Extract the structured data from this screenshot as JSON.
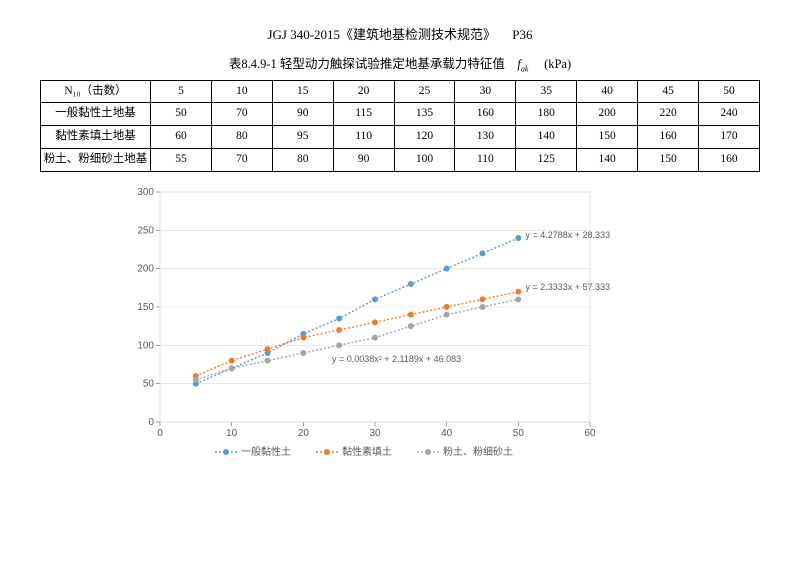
{
  "header": {
    "standard": "JGJ 340-2015《建筑地基检测技术规范》",
    "page_ref": "P36"
  },
  "caption": {
    "prefix": "表8.4.9-1 轻型动力触探试验推定地基承载力特征值",
    "symbol": "f",
    "symbol_sub": "ak",
    "unit": "(kPa)"
  },
  "table": {
    "header_first_cell": "N₁₀（击数）",
    "n10": [
      "5",
      "10",
      "15",
      "20",
      "25",
      "30",
      "35",
      "40",
      "45",
      "50"
    ],
    "rows": [
      {
        "label": "一般黏性土地基",
        "values": [
          "50",
          "70",
          "90",
          "115",
          "135",
          "160",
          "180",
          "200",
          "220",
          "240"
        ]
      },
      {
        "label": "黏性素填土地基",
        "values": [
          "60",
          "80",
          "95",
          "110",
          "120",
          "130",
          "140",
          "150",
          "160",
          "170"
        ]
      },
      {
        "label": "粉土、粉细砂土地基",
        "values": [
          "55",
          "70",
          "80",
          "90",
          "100",
          "110",
          "125",
          "140",
          "150",
          "160"
        ]
      }
    ]
  },
  "chart": {
    "plot_bg": "#ffffff",
    "border_color": "#d9d9d9",
    "grid_color": "#d9d9d9",
    "grid_width": 0.6,
    "tick_color": "#595959",
    "x": {
      "min": 0,
      "max": 60,
      "step": 10,
      "ticks": [
        "0",
        "10",
        "20",
        "30",
        "40",
        "50",
        "60"
      ]
    },
    "y": {
      "min": 0,
      "max": 300,
      "step": 50,
      "ticks": [
        "0",
        "50",
        "100",
        "150",
        "200",
        "250",
        "300"
      ]
    },
    "series": [
      {
        "name": "一般黏性土",
        "color": "#5b9bd5",
        "marker": "circle",
        "dash": "2,2",
        "x": [
          5,
          10,
          15,
          20,
          25,
          30,
          35,
          40,
          45,
          50
        ],
        "y": [
          50,
          70,
          90,
          115,
          135,
          160,
          180,
          200,
          220,
          240
        ],
        "equation": "y = 4.2788x + 28.333",
        "eq_color": "#5b9bd5",
        "eq_pos": {
          "x": 51,
          "y": 240
        }
      },
      {
        "name": "黏性素填土",
        "color": "#ed7d31",
        "marker": "circle",
        "dash": "2,2",
        "x": [
          5,
          10,
          15,
          20,
          25,
          30,
          35,
          40,
          45,
          50
        ],
        "y": [
          60,
          80,
          95,
          110,
          120,
          130,
          140,
          150,
          160,
          170
        ],
        "equation": "y = 2.3333x + 57.333",
        "eq_color": "#ed7d31",
        "eq_pos": {
          "x": 51,
          "y": 172
        }
      },
      {
        "name": "粉土、粉细砂土",
        "color": "#a5a5a5",
        "marker": "circle",
        "dash": "2,2",
        "x": [
          5,
          10,
          15,
          20,
          25,
          30,
          35,
          40,
          45,
          50
        ],
        "y": [
          55,
          70,
          80,
          90,
          100,
          110,
          125,
          140,
          150,
          160
        ],
        "equation": "y = 0.0038x² + 2.1189x + 46.083",
        "eq_color": "#a5a5a5",
        "eq_pos": {
          "x": 24,
          "y": 78
        }
      }
    ],
    "legend_pos": "bottom"
  }
}
